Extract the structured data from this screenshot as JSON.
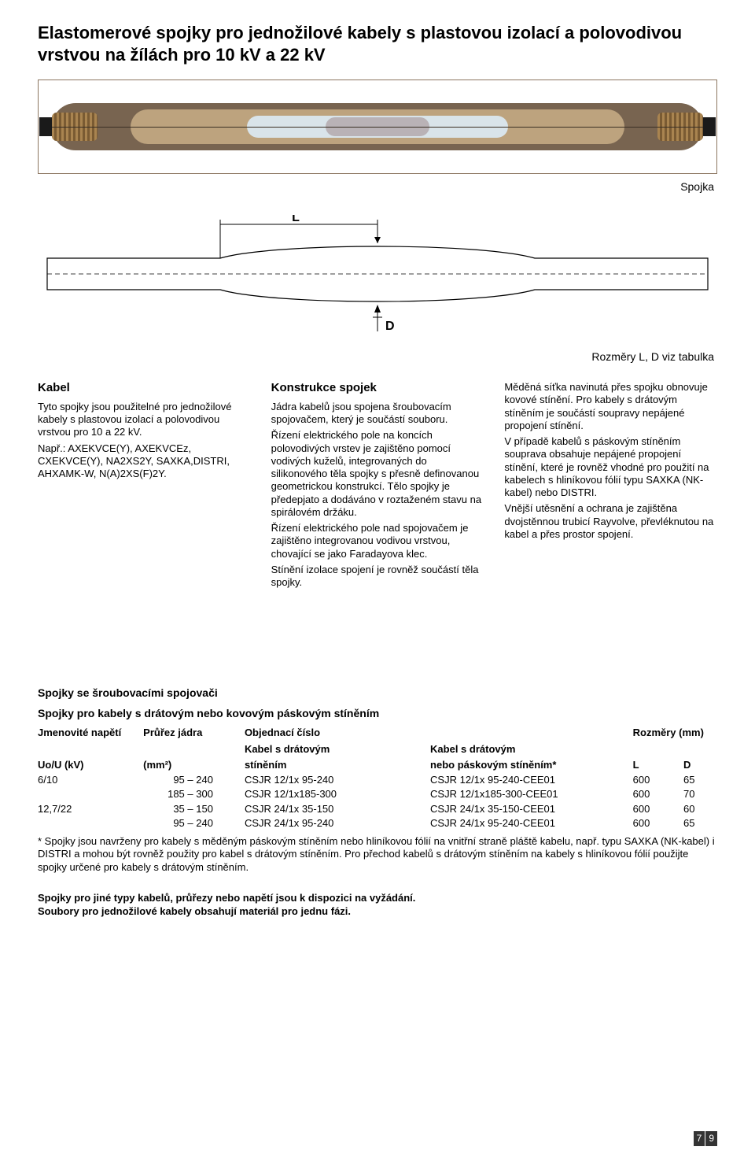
{
  "colors": {
    "figure_border": "#8b7560",
    "outer_tube": "#786450",
    "inner_tube": "#bda37e",
    "core_tube": "#d9e4ea",
    "mid_band": "#b9b2b6",
    "page_badge_bg": "#333333",
    "page_badge_fg": "#ffffff",
    "text": "#000000",
    "background": "#ffffff"
  },
  "typography": {
    "font_family": "Arial, Helvetica, sans-serif",
    "body_fontsize_pt": 10,
    "h1_fontsize_pt": 16,
    "section_title_fontsize_pt": 11
  },
  "title": "Elastomerové spojky pro jednožilové kabely s plastovou izolací a polovodivou vrstvou na žílách pro 10 kV a 22 kV",
  "figure": {
    "label_spojka": "Spojka",
    "dim_L": "L",
    "dim_D": "D",
    "dim_caption": "Rozměry L, D viz tabulka"
  },
  "columns": {
    "c1": {
      "heading": "Kabel",
      "p1": "Tyto spojky jsou použitelné pro jednožilové kabely s plastovou izolací a polovodivou vrstvou pro 10 a 22 kV.",
      "p2": "Např.: AXEKVCE(Y), AXEKVCEz, CXEKVCE(Y), NA2XS2Y, SAXKA,DISTRI, AHXAMK-W, N(A)2XS(F)2Y."
    },
    "c2": {
      "heading": "Konstrukce spojek",
      "p1": "Jádra kabelů jsou spojena šroubovacím spojovačem, který je součástí souboru.",
      "p2": "Řízení elektrického pole na koncích polovodivých vrstev je zajištěno pomocí vodivých kuželů, integrovaných do silikonového těla spojky s přesně definovanou geometrickou konstrukcí. Tělo spojky je předepjato a dodáváno v roztaženém stavu na spirálovém držáku.",
      "p3": "Řízení elektrického pole nad spojovačem je zajištěno integrovanou vodivou vrstvou, chovající se jako Faradayova klec.",
      "p4": "Stínění izolace spojení je rovněž součástí těla spojky."
    },
    "c3": {
      "p1": "Měděná síťka navinutá přes spojku obnovuje kovové stínění. Pro kabely s drátovým stíněním je součástí soupravy nepájené propojení stínění.",
      "p2": "V případě kabelů s páskovým stíněním souprava obsahuje nepájené propojení stínění, které je rovněž vhodné pro použití na kabelech s hliníkovou fólií typu SAXKA (NK-kabel) nebo DISTRI.",
      "p3": "Vnější utěsnění a ochrana je zajištěna dvojstěnnou trubicí Rayvolve, převléknutou na kabel a přes prostor spojení."
    }
  },
  "tables": {
    "section_title": "Spojky se šroubovacími spojovači",
    "table1": {
      "caption": "Spojky pro kabely s drátovým nebo kovovým páskovým stíněním",
      "headers": {
        "voltage_top": "Jmenovité napětí",
        "voltage_bottom": "Uo/U (kV)",
        "section_top": "Průřez jádra",
        "section_bottom": "(mm²)",
        "order_top": "Objednací číslo",
        "order_mid": "Kabel s drátovým",
        "order_bottom": "stíněním",
        "order2_top": "",
        "order2_mid": "Kabel s drátovým",
        "order2_bottom": "nebo páskovým stíněním*",
        "dims_top": "Rozměry (mm)",
        "L": "L",
        "D": "D"
      },
      "rows": [
        {
          "voltage": "6/10",
          "section": "95 – 240",
          "order": "CSJR 12/1x  95-240",
          "order2": "CSJR 12/1x  95-240-CEE01",
          "L": "600",
          "D": "65"
        },
        {
          "voltage": "",
          "section": "185 – 300",
          "order": "CSJR 12/1x185-300",
          "order2": "CSJR 12/1x185-300-CEE01",
          "L": "600",
          "D": "70"
        },
        {
          "voltage": "12,7/22",
          "section": "35 – 150",
          "order": "CSJR 24/1x  35-150",
          "order2": "CSJR 24/1x  35-150-CEE01",
          "L": "600",
          "D": "60"
        },
        {
          "voltage": "",
          "section": "95 – 240",
          "order": "CSJR 24/1x  95-240",
          "order2": "CSJR 24/1x  95-240-CEE01",
          "L": "600",
          "D": "65"
        }
      ],
      "footnote": "* Spojky jsou navrženy pro kabely s měděným páskovým stíněním nebo hliníkovou fólií na vnitřní straně pláště kabelu, např. typu SAXKA (NK-kabel) i DISTRI a mohou být rovněž použity pro kabel s drátovým stíněním. Pro přechod kabelů s drátovým stíněním na kabely s hliníkovou fólií použijte spojky určené pro kabely s drátovým stíněním."
    }
  },
  "final_note_1": "Spojky pro jiné typy kabelů, průřezy nebo napětí jsou k dispozici na vyžádání.",
  "final_note_2": "Soubory pro jednožilové kabely obsahují materiál pro jednu fázi.",
  "page_number": {
    "a": "7",
    "b": "9"
  }
}
